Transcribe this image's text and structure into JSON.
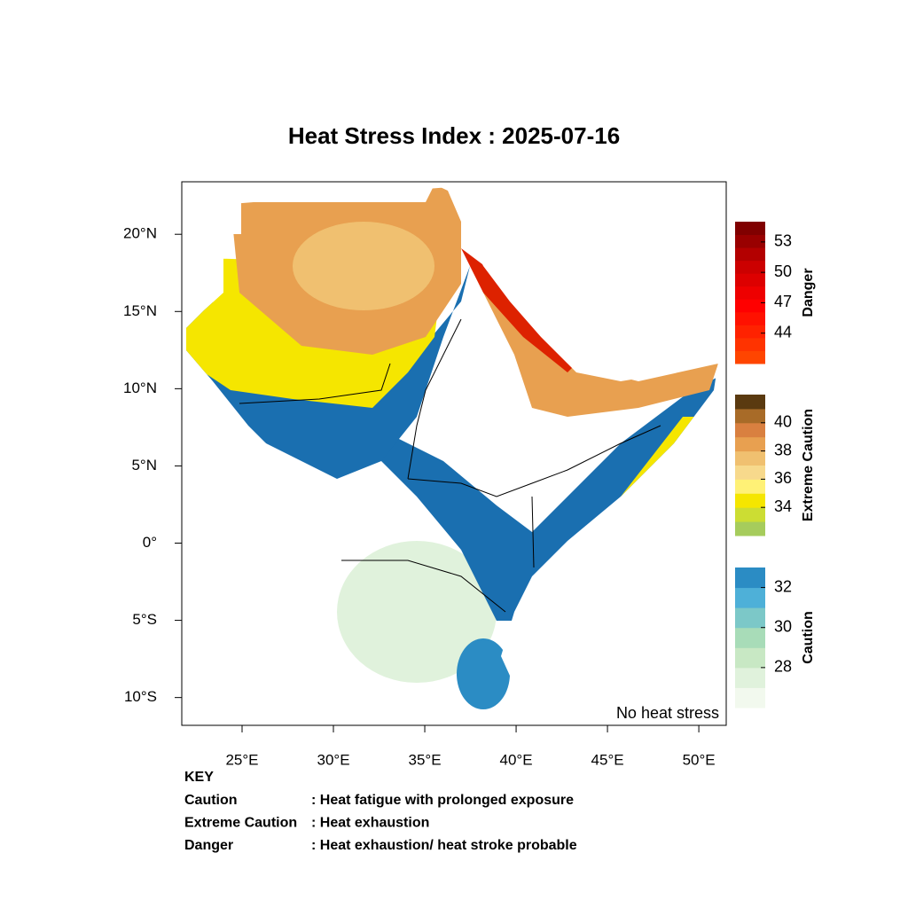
{
  "title": "Heat Stress Index : 2025-07-16",
  "map": {
    "xlim": [
      21.7,
      51.5
    ],
    "ylim": [
      -11.8,
      23.4
    ],
    "xticks": [
      {
        "value": 25,
        "label": "25°E"
      },
      {
        "value": 30,
        "label": "30°E"
      },
      {
        "value": 35,
        "label": "35°E"
      },
      {
        "value": 40,
        "label": "40°E"
      },
      {
        "value": 45,
        "label": "45°E"
      },
      {
        "value": 50,
        "label": "50°E"
      }
    ],
    "yticks": [
      {
        "value": 20,
        "label": "20°N"
      },
      {
        "value": 15,
        "label": "15°N"
      },
      {
        "value": 10,
        "label": "10°N"
      },
      {
        "value": 5,
        "label": "5°N"
      },
      {
        "value": 0,
        "label": "0°"
      },
      {
        "value": -5,
        "label": "5°S"
      },
      {
        "value": -10,
        "label": "10°S"
      }
    ],
    "annotation": "No heat stress"
  },
  "colorbars": [
    {
      "name": "Danger",
      "range": [
        41,
        55
      ],
      "ticks": [
        53,
        50,
        47,
        44
      ],
      "colors": [
        "#ff4500",
        "#ff3300",
        "#ff2200",
        "#ff1100",
        "#ff0000",
        "#ee0000",
        "#dd0000",
        "#cc0000",
        "#b30000",
        "#990000",
        "#800000"
      ]
    },
    {
      "name": "Extreme Caution",
      "range": [
        32,
        42
      ],
      "ticks": [
        40,
        38,
        36,
        34
      ],
      "colors": [
        "#a6cc5c",
        "#ccdd33",
        "#f5e600",
        "#fff176",
        "#f7d98c",
        "#f0c070",
        "#e8a050",
        "#d98040",
        "#a86b28",
        "#5a3a10"
      ]
    },
    {
      "name": "Caution",
      "range": [
        26,
        33
      ],
      "ticks": [
        32,
        30,
        28
      ],
      "colors": [
        "#f2f9ee",
        "#e0f2dc",
        "#c8e8c4",
        "#a8dcb8",
        "#7cc8c8",
        "#4eb0d8",
        "#2b8cc4"
      ]
    }
  ],
  "key": {
    "heading": "KEY",
    "rows": [
      [
        "Caution",
        ": Heat fatigue with prolonged exposure"
      ],
      [
        "Extreme Caution",
        " : Heat exhaustion"
      ],
      [
        "Danger",
        ": Heat exhaustion/ heat stroke probable"
      ]
    ]
  }
}
